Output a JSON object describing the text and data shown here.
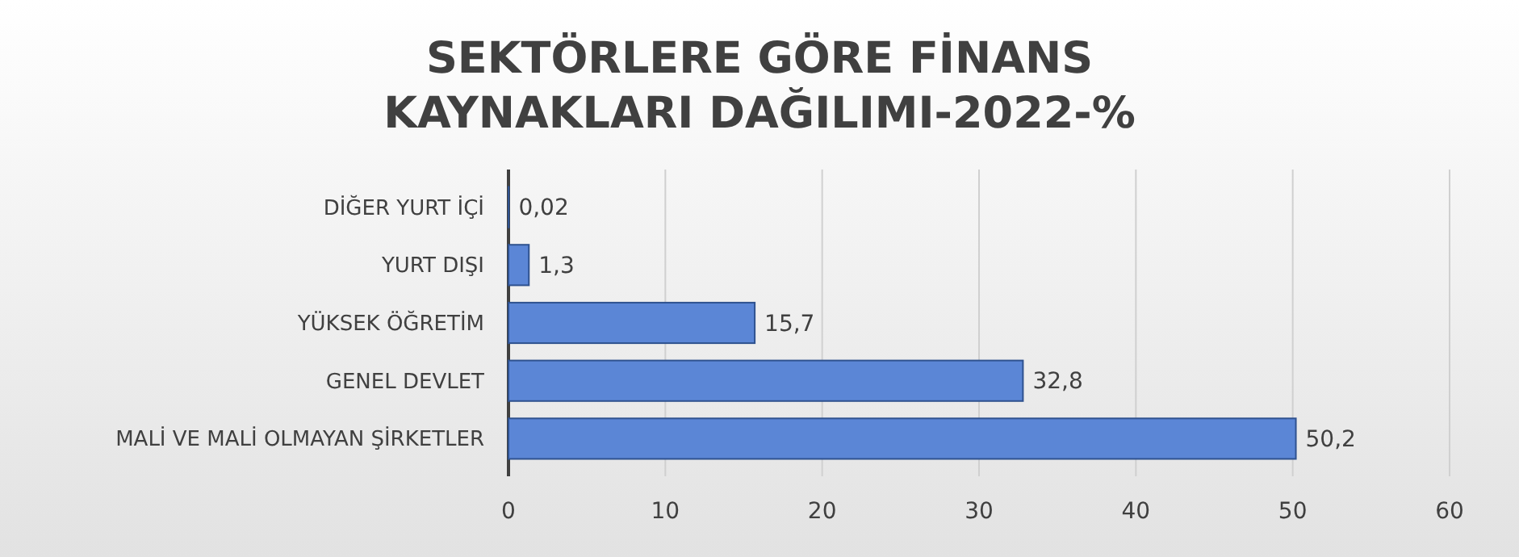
{
  "chart_data": {
    "type": "bar",
    "orientation": "horizontal",
    "title": "SEKTÖRLERE GÖRE FİNANS KAYNAKLARI DAĞILIMI-2022-%",
    "categories": [
      "DİĞER YURT İÇİ",
      "YURT DIŞI",
      "YÜKSEK ÖĞRETİM",
      "GENEL DEVLET",
      "MALİ VE MALİ OLMAYAN ŞİRKETLER"
    ],
    "values": [
      0.02,
      1.3,
      15.7,
      32.8,
      50.2
    ],
    "value_labels": [
      "0,02",
      "1,3",
      "15,7",
      "32,8",
      "50,2"
    ],
    "color": "#5b86d6",
    "xlim": [
      0,
      60
    ],
    "xticks": [
      0,
      10,
      20,
      30,
      40,
      50,
      60
    ],
    "grid": "x"
  }
}
